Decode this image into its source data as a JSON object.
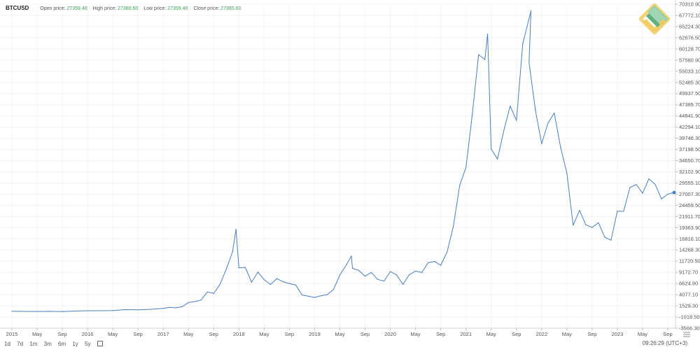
{
  "header": {
    "symbol": "BTCUSD",
    "open_label": "Open price:",
    "open_value": "27359.40",
    "high_label": "High price:",
    "high_value": "27380.60",
    "low_label": "Low price:",
    "low_value": "27359.40",
    "close_label": "Close price:",
    "close_value": "27365.60"
  },
  "toolbar": {
    "ranges": [
      "1d",
      "7d",
      "1m",
      "3m",
      "6m",
      "1y",
      "5y"
    ],
    "calendar_icon": "calendar-icon"
  },
  "clock": "09:26:29 (UTC+3)",
  "colors": {
    "line": "#4a7fc0",
    "grid": "#eeeeee",
    "accent": "#3aa35c"
  },
  "chart_data": {
    "type": "line",
    "y_ticks": [
      "70310.90",
      "67772.10",
      "65224.30",
      "62676.50",
      "60128.70",
      "57580.90",
      "55033.10",
      "52485.30",
      "49937.50",
      "47389.70",
      "44841.90",
      "42294.10",
      "39746.30",
      "37198.50",
      "34650.70",
      "32102.90",
      "29555.10",
      "27007.30",
      "24459.50",
      "21911.70",
      "19363.90",
      "16816.10",
      "14268.30",
      "11720.50",
      "9172.70",
      "6624.90",
      "4077.10",
      "1529.30",
      "-1018.50",
      "-3566.30"
    ],
    "ylim": [
      -3566.3,
      70310.9
    ],
    "x_ticks": [
      "2015",
      "May",
      "Sep",
      "2016",
      "May",
      "Sep",
      "2017",
      "May",
      "Sep",
      "2018",
      "May",
      "Sep",
      "2019",
      "May",
      "Sep",
      "2020",
      "May",
      "Sep",
      "2021",
      "May",
      "Sep",
      "2022",
      "May",
      "Sep",
      "2023",
      "May",
      "Sep"
    ],
    "xlim": [
      "2015-01",
      "2023-10"
    ],
    "last_value": 27365.6,
    "series": [
      {
        "points": [
          [
            "2015-01",
            300
          ],
          [
            "2015-03",
            270
          ],
          [
            "2015-05",
            240
          ],
          [
            "2015-07",
            280
          ],
          [
            "2015-09",
            235
          ],
          [
            "2015-11",
            350
          ],
          [
            "2016-01",
            430
          ],
          [
            "2016-03",
            415
          ],
          [
            "2016-05",
            450
          ],
          [
            "2016-07",
            660
          ],
          [
            "2016-09",
            610
          ],
          [
            "2016-11",
            740
          ],
          [
            "2017-01",
            970
          ],
          [
            "2017-02",
            1190
          ],
          [
            "2017-03",
            1080
          ],
          [
            "2017-04",
            1350
          ],
          [
            "2017-05",
            2300
          ],
          [
            "2017-06",
            2500
          ],
          [
            "2017-07",
            2870
          ],
          [
            "2017-08",
            4700
          ],
          [
            "2017-09",
            4340
          ],
          [
            "2017-10",
            6450
          ],
          [
            "2017-11",
            9900
          ],
          [
            "2017-12",
            13900
          ],
          [
            "2017-12-17",
            19000
          ],
          [
            "2018-01",
            10200
          ],
          [
            "2018-02",
            10300
          ],
          [
            "2018-03",
            6900
          ],
          [
            "2018-04",
            9240
          ],
          [
            "2018-05",
            7500
          ],
          [
            "2018-06",
            6400
          ],
          [
            "2018-07",
            7730
          ],
          [
            "2018-08",
            7030
          ],
          [
            "2018-09",
            6600
          ],
          [
            "2018-10",
            6300
          ],
          [
            "2018-11",
            4020
          ],
          [
            "2018-12",
            3740
          ],
          [
            "2019-01",
            3460
          ],
          [
            "2019-02",
            3830
          ],
          [
            "2019-03",
            4100
          ],
          [
            "2019-04",
            5270
          ],
          [
            "2019-05",
            8560
          ],
          [
            "2019-06",
            10800
          ],
          [
            "2019-06-26",
            12900
          ],
          [
            "2019-07",
            10100
          ],
          [
            "2019-08",
            9600
          ],
          [
            "2019-09",
            8300
          ],
          [
            "2019-10",
            9150
          ],
          [
            "2019-11",
            7550
          ],
          [
            "2019-12",
            7190
          ],
          [
            "2020-01",
            9350
          ],
          [
            "2020-02",
            8600
          ],
          [
            "2020-03",
            6420
          ],
          [
            "2020-04",
            8630
          ],
          [
            "2020-05",
            9450
          ],
          [
            "2020-06",
            9140
          ],
          [
            "2020-07",
            11350
          ],
          [
            "2020-08",
            11650
          ],
          [
            "2020-09",
            10780
          ],
          [
            "2020-10",
            13800
          ],
          [
            "2020-11",
            19700
          ],
          [
            "2020-12",
            29000
          ],
          [
            "2021-01",
            33100
          ],
          [
            "2021-02",
            45200
          ],
          [
            "2021-03",
            58800
          ],
          [
            "2021-04",
            57700
          ],
          [
            "2021-04-14",
            63500
          ],
          [
            "2021-05",
            37300
          ],
          [
            "2021-06",
            35000
          ],
          [
            "2021-07",
            41500
          ],
          [
            "2021-08",
            47100
          ],
          [
            "2021-09",
            43800
          ],
          [
            "2021-10",
            61300
          ],
          [
            "2021-11-10",
            68800
          ],
          [
            "2021-11",
            57000
          ],
          [
            "2021-12",
            46200
          ],
          [
            "2022-01",
            38500
          ],
          [
            "2022-02",
            43200
          ],
          [
            "2022-03",
            45500
          ],
          [
            "2022-04",
            37700
          ],
          [
            "2022-05",
            31800
          ],
          [
            "2022-06",
            19900
          ],
          [
            "2022-07",
            23300
          ],
          [
            "2022-08",
            20000
          ],
          [
            "2022-09",
            19400
          ],
          [
            "2022-10",
            20500
          ],
          [
            "2022-11",
            17200
          ],
          [
            "2022-12",
            16500
          ],
          [
            "2023-01",
            23100
          ],
          [
            "2023-02",
            23100
          ],
          [
            "2023-03",
            28500
          ],
          [
            "2023-04",
            29200
          ],
          [
            "2023-05",
            27200
          ],
          [
            "2023-06",
            30500
          ],
          [
            "2023-07",
            29200
          ],
          [
            "2023-08",
            25900
          ],
          [
            "2023-09",
            27000
          ],
          [
            "2023-10",
            27365.6
          ]
        ]
      }
    ]
  }
}
